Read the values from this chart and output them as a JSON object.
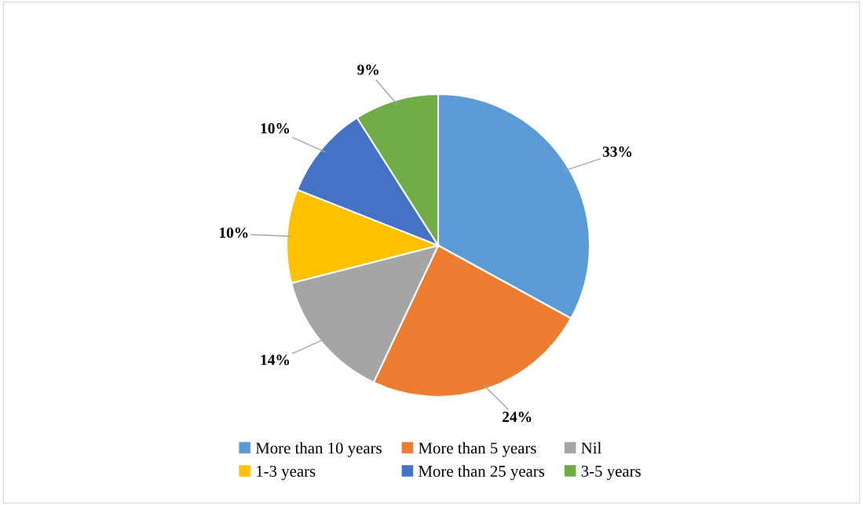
{
  "chart_data": {
    "type": "pie",
    "categories": [
      "More than 10 years",
      "More than 5 years",
      "Nil",
      "1-3 years",
      "More than 25 years",
      "3-5 years"
    ],
    "values": [
      33,
      24,
      14,
      10,
      10,
      9
    ],
    "colors": [
      "#5b9bd5",
      "#ed7d31",
      "#a5a5a5",
      "#ffc000",
      "#4472c4",
      "#70ad47"
    ],
    "value_labels": [
      "33%",
      "24%",
      "14%",
      "10%",
      "10%",
      "9%"
    ],
    "legend": "bottom"
  }
}
